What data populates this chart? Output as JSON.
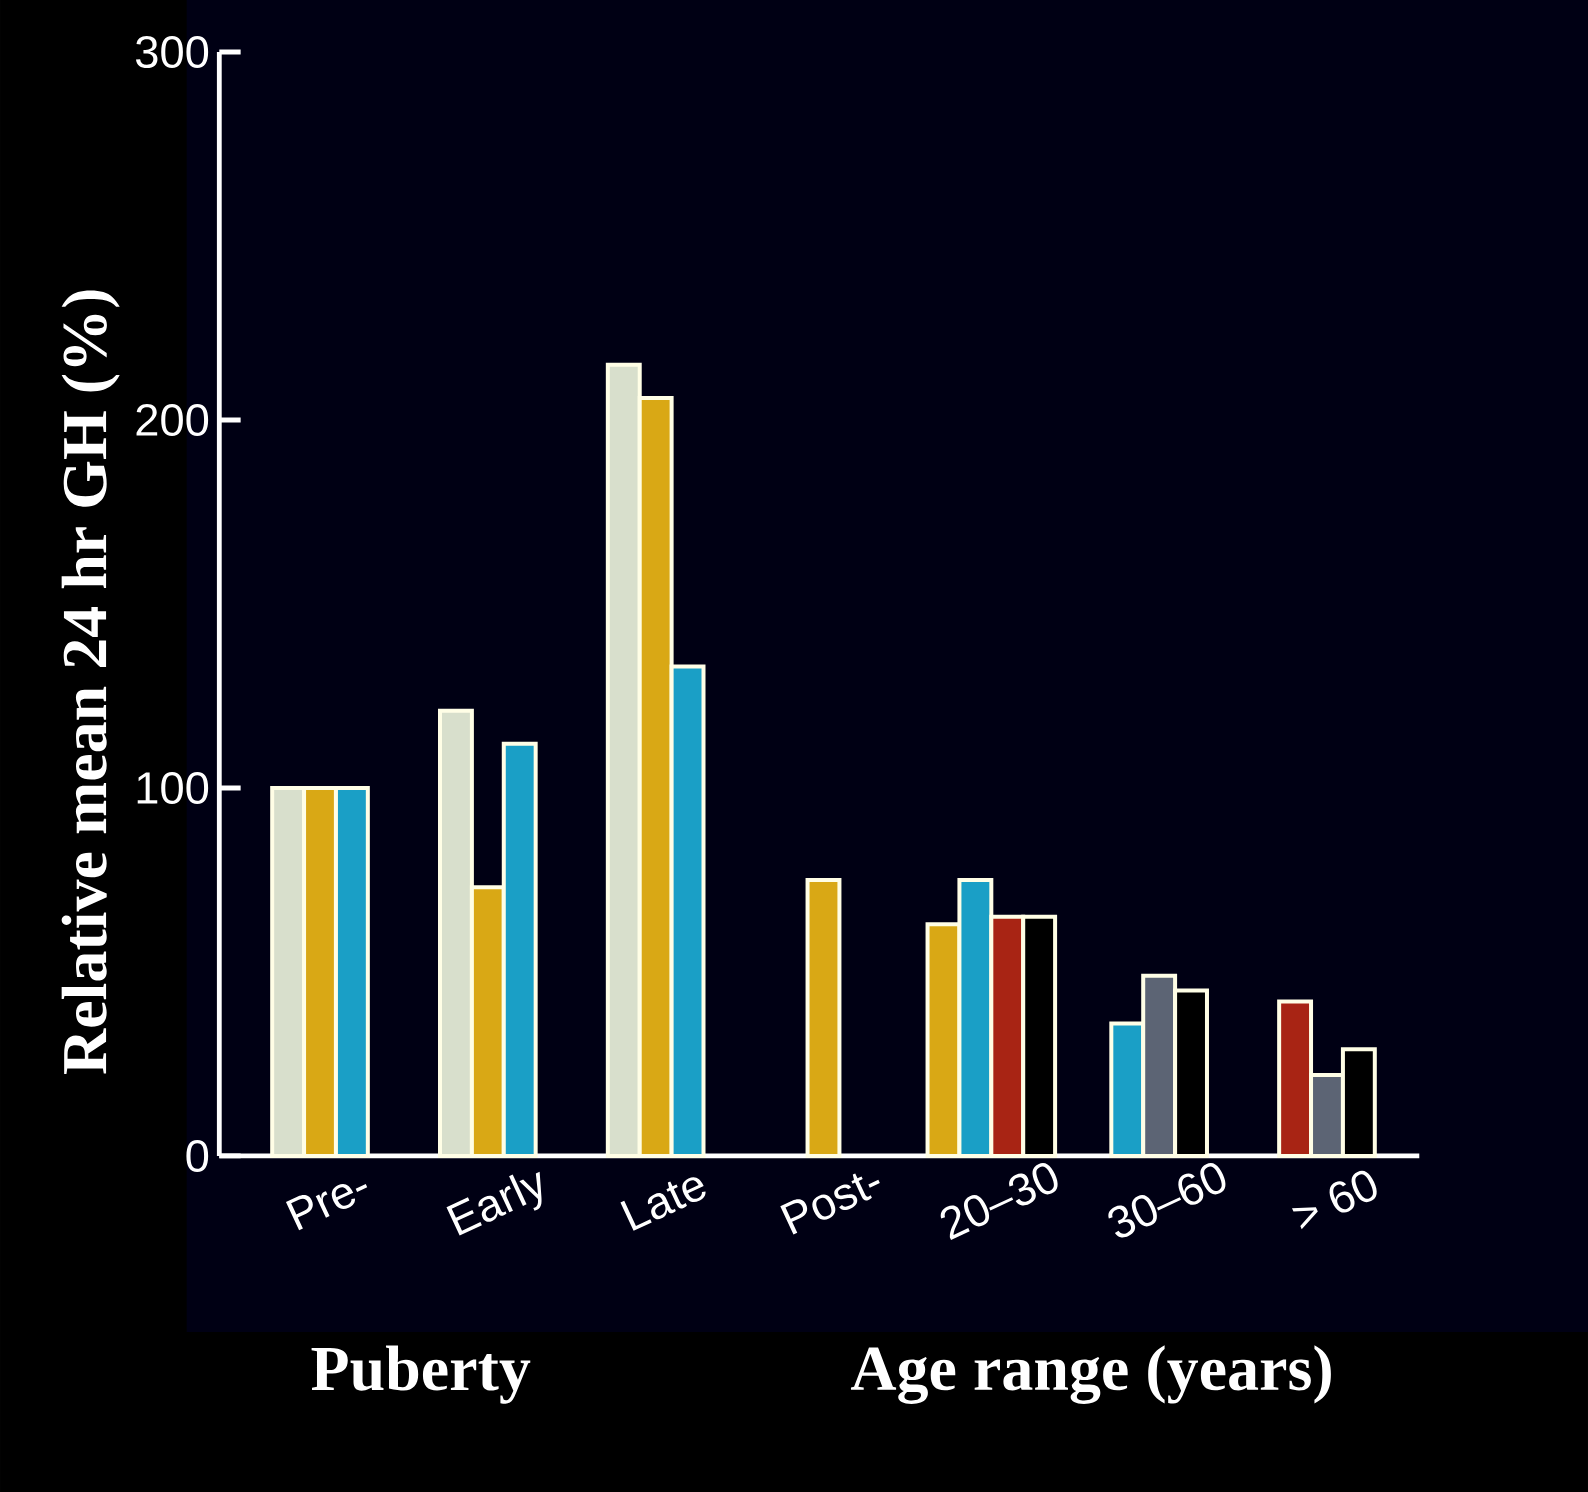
{
  "chart_data": {
    "type": "bar",
    "xlabel": "Puberty",
    "ylabel": "Relative mean 24 hr GH (%)",
    "annotations": [
      "Age range (years)"
    ],
    "categories": [
      "Pre-",
      "Early",
      "Late",
      "Post-",
      "20–30",
      "30–60",
      "> 60"
    ],
    "series": [
      {
        "color": "#d8dfcc",
        "values": [
          100,
          121,
          215,
          null,
          null,
          null,
          null
        ]
      },
      {
        "color": "#d9a815",
        "values": [
          100,
          73,
          206,
          75,
          63,
          null,
          null
        ]
      },
      {
        "color": "#1a9fc6",
        "values": [
          100,
          112,
          133,
          null,
          75,
          36,
          null
        ]
      },
      {
        "color": "#a82414",
        "values": [
          null,
          null,
          null,
          null,
          65,
          null,
          42
        ]
      },
      {
        "color": "#5c6474",
        "values": [
          null,
          null,
          null,
          null,
          null,
          49,
          22
        ]
      },
      {
        "color": "#000000",
        "values": [
          null,
          null,
          null,
          null,
          65,
          45,
          29
        ]
      }
    ],
    "ylim": [
      0,
      300
    ],
    "yticks": [
      0,
      100,
      200,
      300
    ]
  }
}
